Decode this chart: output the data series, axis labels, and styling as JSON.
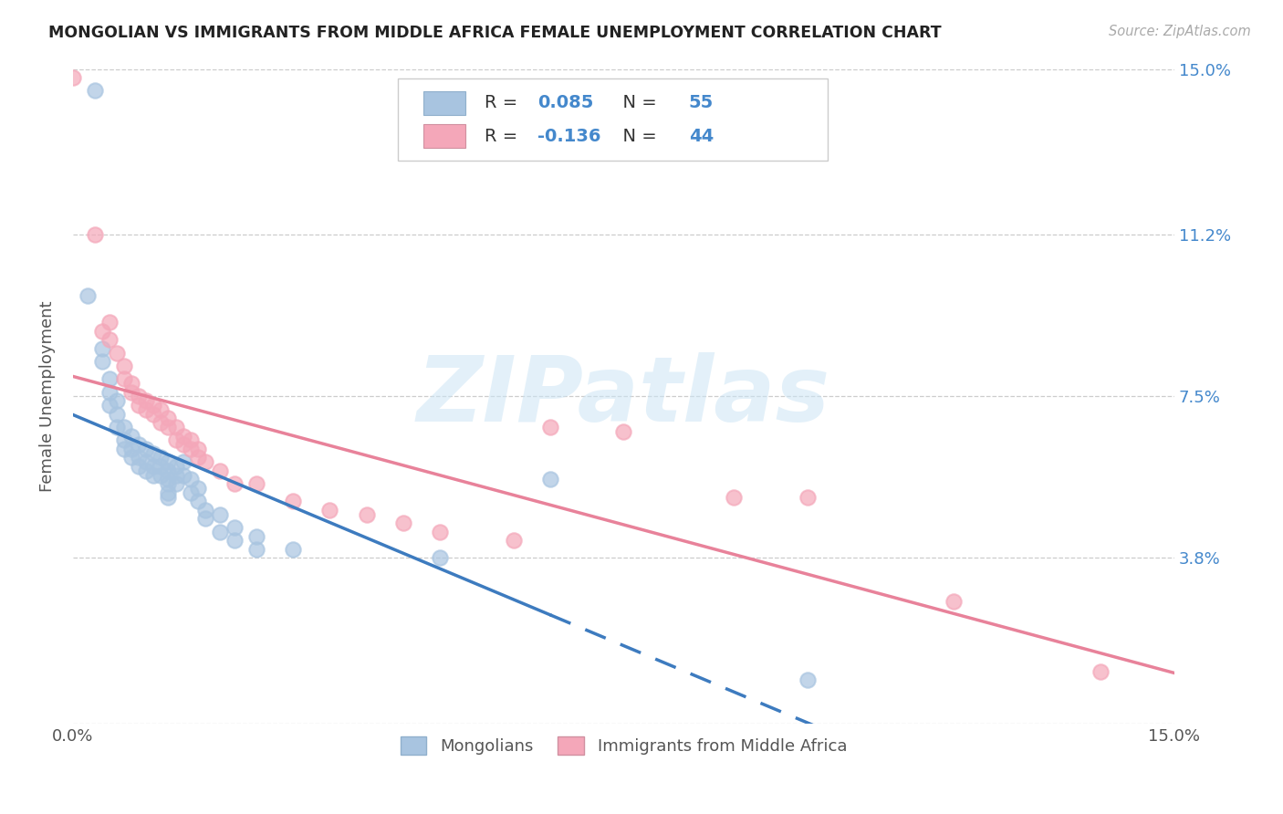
{
  "title": "MONGOLIAN VS IMMIGRANTS FROM MIDDLE AFRICA FEMALE UNEMPLOYMENT CORRELATION CHART",
  "source": "Source: ZipAtlas.com",
  "ylabel": "Female Unemployment",
  "xlim": [
    0.0,
    0.15
  ],
  "ylim": [
    0.0,
    0.15
  ],
  "ytick_values": [
    0.0,
    0.038,
    0.075,
    0.112,
    0.15
  ],
  "right_ytick_labels": [
    "15.0%",
    "11.2%",
    "7.5%",
    "3.8%",
    ""
  ],
  "right_ytick_values": [
    0.15,
    0.112,
    0.075,
    0.038,
    0.0
  ],
  "mongolian_color": "#a8c4e0",
  "immigrant_color": "#f4a7b9",
  "mongolian_R": 0.085,
  "mongolian_N": 55,
  "immigrant_R": -0.136,
  "immigrant_N": 44,
  "mongolian_line_color": "#3d7bbf",
  "immigrant_line_color": "#e8829a",
  "watermark": "ZIPatlas",
  "legend_R_color": "#4488cc",
  "legend_N_color": "#4488cc",
  "mongolian_scatter": [
    [
      0.002,
      0.098
    ],
    [
      0.003,
      0.145
    ],
    [
      0.004,
      0.086
    ],
    [
      0.004,
      0.083
    ],
    [
      0.005,
      0.079
    ],
    [
      0.005,
      0.076
    ],
    [
      0.005,
      0.073
    ],
    [
      0.006,
      0.074
    ],
    [
      0.006,
      0.071
    ],
    [
      0.006,
      0.068
    ],
    [
      0.007,
      0.068
    ],
    [
      0.007,
      0.065
    ],
    [
      0.007,
      0.063
    ],
    [
      0.008,
      0.066
    ],
    [
      0.008,
      0.063
    ],
    [
      0.008,
      0.061
    ],
    [
      0.009,
      0.064
    ],
    [
      0.009,
      0.061
    ],
    [
      0.009,
      0.059
    ],
    [
      0.01,
      0.063
    ],
    [
      0.01,
      0.06
    ],
    [
      0.01,
      0.058
    ],
    [
      0.011,
      0.062
    ],
    [
      0.011,
      0.059
    ],
    [
      0.011,
      0.057
    ],
    [
      0.012,
      0.061
    ],
    [
      0.012,
      0.059
    ],
    [
      0.012,
      0.057
    ],
    [
      0.013,
      0.06
    ],
    [
      0.013,
      0.058
    ],
    [
      0.013,
      0.056
    ],
    [
      0.013,
      0.055
    ],
    [
      0.013,
      0.053
    ],
    [
      0.013,
      0.052
    ],
    [
      0.014,
      0.059
    ],
    [
      0.014,
      0.057
    ],
    [
      0.014,
      0.055
    ],
    [
      0.015,
      0.06
    ],
    [
      0.015,
      0.057
    ],
    [
      0.016,
      0.056
    ],
    [
      0.016,
      0.053
    ],
    [
      0.017,
      0.054
    ],
    [
      0.017,
      0.051
    ],
    [
      0.018,
      0.049
    ],
    [
      0.018,
      0.047
    ],
    [
      0.02,
      0.048
    ],
    [
      0.02,
      0.044
    ],
    [
      0.022,
      0.045
    ],
    [
      0.022,
      0.042
    ],
    [
      0.025,
      0.043
    ],
    [
      0.025,
      0.04
    ],
    [
      0.03,
      0.04
    ],
    [
      0.05,
      0.038
    ],
    [
      0.065,
      0.056
    ],
    [
      0.1,
      0.01
    ]
  ],
  "immigrant_scatter": [
    [
      0.0,
      0.148
    ],
    [
      0.003,
      0.112
    ],
    [
      0.004,
      0.09
    ],
    [
      0.005,
      0.092
    ],
    [
      0.005,
      0.088
    ],
    [
      0.006,
      0.085
    ],
    [
      0.007,
      0.082
    ],
    [
      0.007,
      0.079
    ],
    [
      0.008,
      0.078
    ],
    [
      0.008,
      0.076
    ],
    [
      0.009,
      0.075
    ],
    [
      0.009,
      0.073
    ],
    [
      0.01,
      0.074
    ],
    [
      0.01,
      0.072
    ],
    [
      0.011,
      0.073
    ],
    [
      0.011,
      0.071
    ],
    [
      0.012,
      0.072
    ],
    [
      0.012,
      0.069
    ],
    [
      0.013,
      0.07
    ],
    [
      0.013,
      0.068
    ],
    [
      0.014,
      0.068
    ],
    [
      0.014,
      0.065
    ],
    [
      0.015,
      0.066
    ],
    [
      0.015,
      0.064
    ],
    [
      0.016,
      0.065
    ],
    [
      0.016,
      0.063
    ],
    [
      0.017,
      0.063
    ],
    [
      0.017,
      0.061
    ],
    [
      0.018,
      0.06
    ],
    [
      0.02,
      0.058
    ],
    [
      0.022,
      0.055
    ],
    [
      0.025,
      0.055
    ],
    [
      0.03,
      0.051
    ],
    [
      0.035,
      0.049
    ],
    [
      0.04,
      0.048
    ],
    [
      0.045,
      0.046
    ],
    [
      0.05,
      0.044
    ],
    [
      0.06,
      0.042
    ],
    [
      0.065,
      0.068
    ],
    [
      0.075,
      0.067
    ],
    [
      0.09,
      0.052
    ],
    [
      0.1,
      0.052
    ],
    [
      0.12,
      0.028
    ],
    [
      0.14,
      0.012
    ]
  ]
}
